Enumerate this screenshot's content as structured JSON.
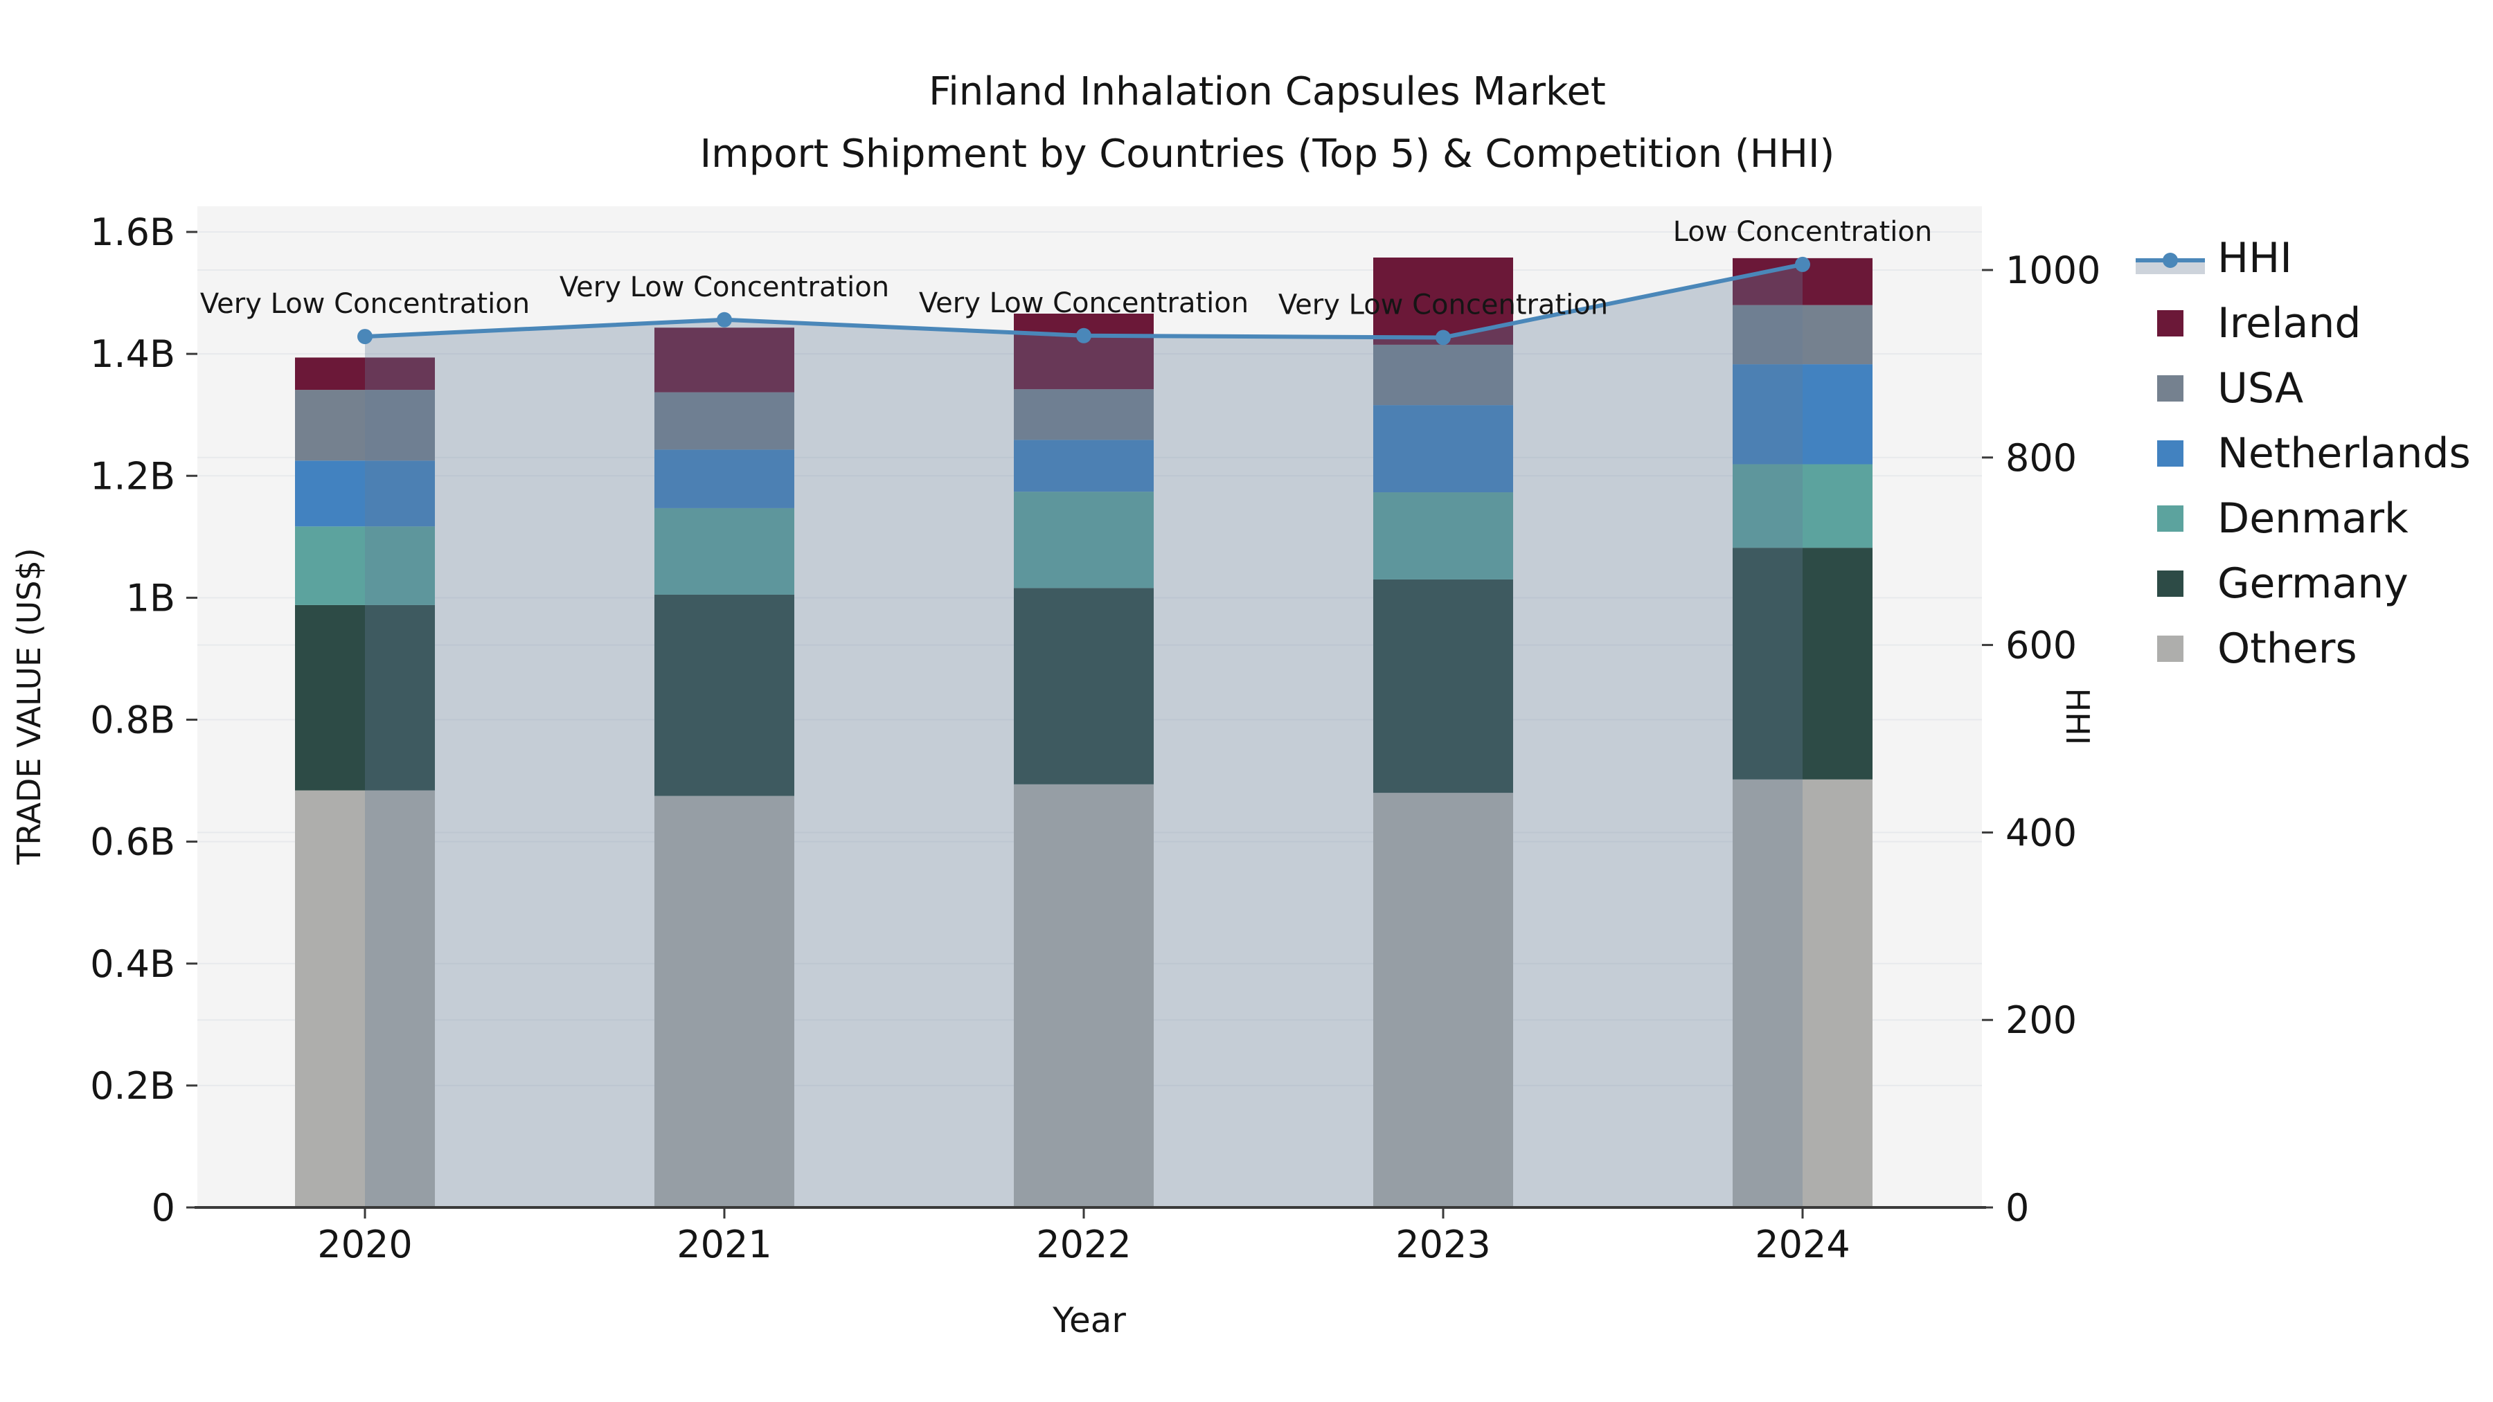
{
  "title": {
    "line1": "Finland Inhalation Capsules Market",
    "line2": "Import Shipment by Countries (Top 5) & Competition (HHI)"
  },
  "colors": {
    "ireland": "#6b1838",
    "usa": "#75818f",
    "netherlands": "#4282c0",
    "denmark": "#5ca39e",
    "germany": "#2d4b46",
    "others": "#aeaeac",
    "hhi_line": "#4a87b9",
    "hhi_area_fill": "rgba(100,123,153,0.32)",
    "legend_band": "#cdd3db",
    "plot_background": "#f4f4f4",
    "gridline": "#e7e9ec",
    "axis_line": "#3a3a3a",
    "text": "#151515"
  },
  "legend": {
    "items": [
      {
        "label": "HHI",
        "type": "line",
        "color_key": "hhi_line"
      },
      {
        "label": "Ireland",
        "type": "swatch",
        "color_key": "ireland"
      },
      {
        "label": "USA",
        "type": "swatch",
        "color_key": "usa"
      },
      {
        "label": "Netherlands",
        "type": "swatch",
        "color_key": "netherlands"
      },
      {
        "label": "Denmark",
        "type": "swatch",
        "color_key": "denmark"
      },
      {
        "label": "Germany",
        "type": "swatch",
        "color_key": "germany"
      },
      {
        "label": "Others",
        "type": "swatch",
        "color_key": "others"
      }
    ]
  },
  "chart_data": {
    "type": "bar",
    "subtype": "stacked-bars-with-line-and-area",
    "title": "Finland Inhalation Capsules Market — Import Shipment by Countries (Top 5) & Competition (HHI)",
    "categories": [
      "2020",
      "2021",
      "2022",
      "2023",
      "2024"
    ],
    "unit": "US$ millions",
    "series": [
      {
        "name": "Others",
        "color_key": "others",
        "values_musd": [
          684,
          675,
          694,
          680,
          702
        ]
      },
      {
        "name": "Germany",
        "color_key": "germany",
        "values_musd": [
          304,
          330,
          322,
          350,
          380
        ]
      },
      {
        "name": "Denmark",
        "color_key": "denmark",
        "values_musd": [
          129,
          142,
          158,
          143,
          137
        ]
      },
      {
        "name": "Netherlands",
        "color_key": "netherlands",
        "values_musd": [
          108,
          96,
          85,
          143,
          164
        ]
      },
      {
        "name": "USA",
        "color_key": "usa",
        "values_musd": [
          116,
          94,
          83,
          99,
          97
        ]
      },
      {
        "name": "Ireland",
        "color_key": "ireland",
        "values_musd": [
          53,
          106,
          124,
          143,
          77
        ]
      }
    ],
    "bar_totals_musd": [
      1394,
      1443,
      1466,
      1558,
      1557
    ],
    "line_series": {
      "name": "HHI",
      "axis": "right",
      "values": [
        929,
        947,
        930,
        928,
        1006
      ],
      "area_fill": true
    },
    "annotations": [
      {
        "category": "2020",
        "text": "Very Low Concentration"
      },
      {
        "category": "2021",
        "text": "Very Low Concentration"
      },
      {
        "category": "2022",
        "text": "Very Low Concentration"
      },
      {
        "category": "2023",
        "text": "Very Low Concentration"
      },
      {
        "category": "2024",
        "text": "Low Concentration"
      }
    ],
    "left_axis": {
      "label": "TRADE VALUE (US$)",
      "ticks": [
        {
          "label": "0",
          "musd": 0
        },
        {
          "label": "0.2B",
          "musd": 200
        },
        {
          "label": "0.4B",
          "musd": 400
        },
        {
          "label": "0.6B",
          "musd": 600
        },
        {
          "label": "0.8B",
          "musd": 800
        },
        {
          "label": "1B",
          "musd": 1000
        },
        {
          "label": "1.2B",
          "musd": 1200
        },
        {
          "label": "1.4B",
          "musd": 1400
        },
        {
          "label": "1.6B",
          "musd": 1600
        }
      ],
      "range_musd": [
        0,
        1642
      ],
      "grid": true
    },
    "right_axis": {
      "label": "HHI",
      "ticks": [
        {
          "label": "0",
          "value": 0
        },
        {
          "label": "200",
          "value": 200
        },
        {
          "label": "400",
          "value": 400
        },
        {
          "label": "600",
          "value": 600
        },
        {
          "label": "800",
          "value": 800
        },
        {
          "label": "1000",
          "value": 1000
        }
      ],
      "range": [
        0,
        1068
      ],
      "grid": true
    },
    "x_axis": {
      "label": "Year"
    },
    "legend_position": "right-outside"
  }
}
